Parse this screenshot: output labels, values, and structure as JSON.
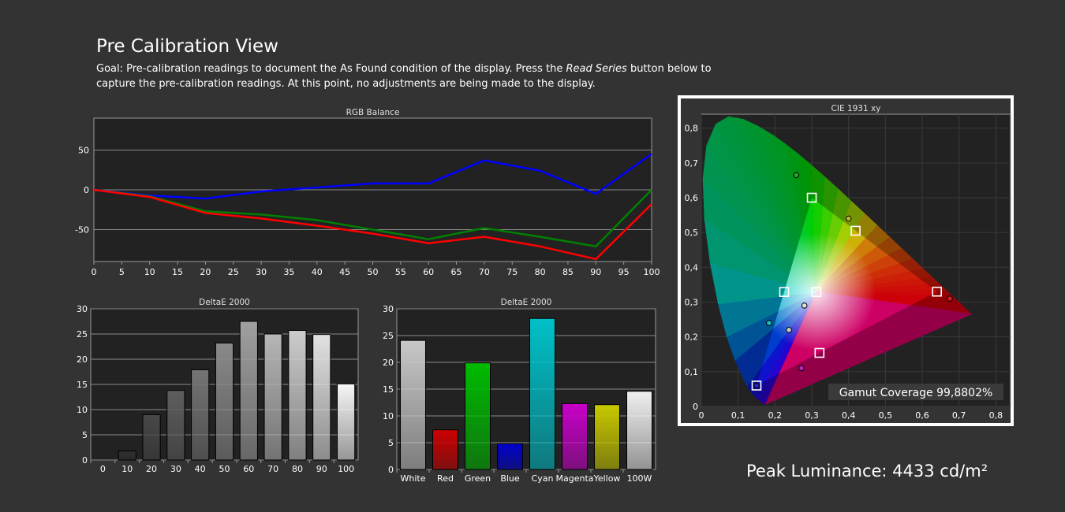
{
  "header": {
    "title": "Pre Calibration View",
    "desc_before": "Goal: Pre-calibration readings to document the As Found condition of the display. Press the ",
    "desc_emph": "Read Series",
    "desc_after": " button below to capture the pre-calibration readings. At this point, no adjustments are being made to the display."
  },
  "peak_luminance": "Peak Luminance: 4433 cd/m²",
  "chart_data": [
    {
      "type": "line",
      "title": "RGB Balance",
      "x": [
        0,
        10,
        20,
        30,
        40,
        50,
        60,
        70,
        80,
        90,
        100
      ],
      "xticks": [
        0,
        5,
        10,
        15,
        20,
        25,
        30,
        35,
        40,
        45,
        50,
        55,
        60,
        65,
        70,
        75,
        80,
        85,
        90,
        95,
        100
      ],
      "yticks": [
        50,
        0,
        -50
      ],
      "xlim": [
        0,
        100
      ],
      "ylim": [
        -90,
        90
      ],
      "grid": true,
      "series": [
        {
          "color": "#0000ff",
          "values": [
            0,
            -7,
            -11,
            -2,
            3,
            8,
            8,
            37,
            24,
            -5,
            45
          ]
        },
        {
          "color": "#008000",
          "values": [
            0,
            -8,
            -27,
            -31,
            -38,
            -50,
            -62,
            -48,
            -59,
            -71,
            0
          ]
        },
        {
          "color": "#ff0000",
          "values": [
            0,
            -9,
            -29,
            -36,
            -45,
            -55,
            -67,
            -59,
            -71,
            -87,
            -18
          ]
        }
      ]
    },
    {
      "type": "bar",
      "title": "DeltaE 2000",
      "categories": [
        "0",
        "10",
        "20",
        "30",
        "40",
        "50",
        "60",
        "70",
        "80",
        "90",
        "100"
      ],
      "values": [
        0,
        1.8,
        9,
        13.8,
        17.9,
        23.2,
        27.5,
        25,
        25.7,
        24.9,
        15.1
      ],
      "colors": [
        "#000000",
        "#303030",
        "#484848",
        "#5e5e5e",
        "#747474",
        "#8a8a8a",
        "#a0a0a0",
        "#b6b6b6",
        "#cccccc",
        "#e2e2e2",
        "#f6f6f6"
      ],
      "yticks": [
        0,
        5,
        10,
        15,
        20,
        25,
        30
      ],
      "ylim": [
        0,
        30
      ],
      "grid": true
    },
    {
      "type": "bar",
      "title": "DeltaE 2000",
      "categories": [
        "White",
        "Red",
        "Green",
        "Blue",
        "Cyan",
        "Magenta",
        "Yellow",
        "100W"
      ],
      "values": [
        24.1,
        7.4,
        19.9,
        4.8,
        28.2,
        12.3,
        12.1,
        14.6
      ],
      "colors": [
        "#c8c8c8",
        "#cc0000",
        "#00bb00",
        "#0000cc",
        "#00c0c8",
        "#c800c8",
        "#c8c800",
        "#f0f0f0"
      ],
      "yticks": [
        0,
        5,
        10,
        15,
        20,
        25,
        30
      ],
      "ylim": [
        0,
        30
      ],
      "grid": true
    },
    {
      "type": "scatter",
      "title": "CIE 1931 xy",
      "xlim": [
        0,
        0.84
      ],
      "ylim": [
        0,
        0.84
      ],
      "xticks": [
        "0",
        "0,1",
        "0,2",
        "0,3",
        "0,4",
        "0,5",
        "0,6",
        "0,7",
        "0,8"
      ],
      "yticks": [
        "0",
        "0,1",
        "0,2",
        "0,3",
        "0,4",
        "0,5",
        "0,6",
        "0,7",
        "0,8"
      ],
      "grid": true,
      "targets": [
        {
          "name": "Red",
          "x": 0.64,
          "y": 0.33
        },
        {
          "name": "Green",
          "x": 0.3,
          "y": 0.6
        },
        {
          "name": "Blue",
          "x": 0.15,
          "y": 0.06
        },
        {
          "name": "White",
          "x": 0.3127,
          "y": 0.329
        },
        {
          "name": "Cyan",
          "x": 0.225,
          "y": 0.329
        },
        {
          "name": "Yellow",
          "x": 0.419,
          "y": 0.505
        },
        {
          "name": "Magenta",
          "x": 0.321,
          "y": 0.154
        }
      ],
      "measured": [
        {
          "name": "Red",
          "x": 0.675,
          "y": 0.31,
          "color": "#cc2222"
        },
        {
          "name": "Green",
          "x": 0.258,
          "y": 0.665,
          "color": "#22aa22"
        },
        {
          "name": "Blue",
          "x": 0.15,
          "y": 0.06,
          "color": "#2222cc"
        },
        {
          "name": "White",
          "x": 0.28,
          "y": 0.29,
          "color": "#dddddd"
        },
        {
          "name": "Cyan",
          "x": 0.184,
          "y": 0.24,
          "color": "#22bbbb"
        },
        {
          "name": "Yellow",
          "x": 0.4,
          "y": 0.54,
          "color": "#bbbb22"
        },
        {
          "name": "Magenta",
          "x": 0.272,
          "y": 0.11,
          "color": "#bb22bb"
        },
        {
          "name": "100W",
          "x": 0.238,
          "y": 0.22,
          "color": "#cccccc"
        }
      ],
      "gamut_coverage": "Gamut Coverage 99,8802%"
    }
  ]
}
